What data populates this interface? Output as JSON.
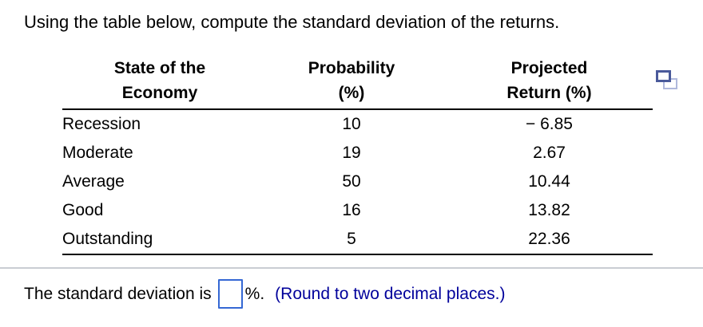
{
  "title": "Using the table below, compute the standard deviation of the returns.",
  "table": {
    "columns": [
      {
        "line1": "State of the",
        "line2": "Economy"
      },
      {
        "line1": "Probability",
        "line2": "(%)"
      },
      {
        "line1": "Projected",
        "line2": "Return (%)"
      }
    ],
    "rows": [
      {
        "state": "Recession",
        "probability": "10",
        "return": "− 6.85"
      },
      {
        "state": "Moderate",
        "probability": "19",
        "return": "2.67"
      },
      {
        "state": "Average",
        "probability": "50",
        "return": "10.44"
      },
      {
        "state": "Good",
        "probability": "16",
        "return": "13.82"
      },
      {
        "state": "Outstanding",
        "probability": "5",
        "return": "22.36"
      }
    ]
  },
  "icons": {
    "copy_table_icon": "two-overlapping-windows"
  },
  "answer": {
    "prefix": "The standard deviation is",
    "input_value": "",
    "input_placeholder": "",
    "suffix": "%.",
    "instruction": "(Round to two decimal places.)"
  },
  "colors": {
    "instruction_text": "#00009b",
    "input_border": "#3568d4",
    "icon_front": "#4a5a9b",
    "icon_back": "#b0b9dc",
    "divider": "#c9cdd3",
    "table_rule": "#000000"
  }
}
